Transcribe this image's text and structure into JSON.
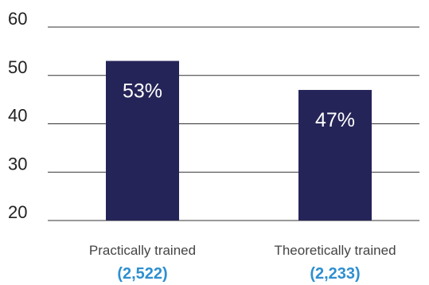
{
  "chart_data": {
    "type": "bar",
    "categories": [
      "Practically trained",
      "Theoretically trained"
    ],
    "counts": [
      "(2,522)",
      "(2,233)"
    ],
    "values": [
      53,
      47
    ],
    "value_labels": [
      "53%",
      "47%"
    ],
    "yticks": [
      20,
      30,
      40,
      50,
      60
    ],
    "ylim": [
      20,
      60
    ],
    "grid": true,
    "title": "",
    "xlabel": "",
    "ylabel": ""
  },
  "colors": {
    "bar": "#252458",
    "count_text": "#2e8fd0"
  }
}
